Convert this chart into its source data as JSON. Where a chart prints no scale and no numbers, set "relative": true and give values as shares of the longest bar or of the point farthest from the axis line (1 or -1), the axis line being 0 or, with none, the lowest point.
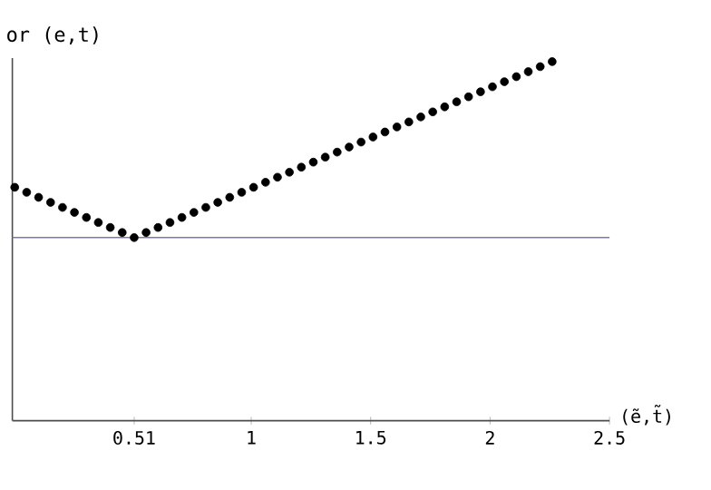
{
  "chart_data": {
    "type": "scatter",
    "relative": true,
    "xlabel": "(ẽ,t̃)",
    "ylabel": "or (e,t)",
    "x": [
      0.01,
      0.06,
      0.11,
      0.16,
      0.21,
      0.26,
      0.31,
      0.36,
      0.41,
      0.46,
      0.51,
      0.56,
      0.61,
      0.66,
      0.71,
      0.76,
      0.81,
      0.86,
      0.91,
      0.96,
      1.01,
      1.06,
      1.11,
      1.16,
      1.21,
      1.26,
      1.31,
      1.36,
      1.41,
      1.46,
      1.51,
      1.56,
      1.61,
      1.66,
      1.71,
      1.76,
      1.81,
      1.86,
      1.91,
      1.96,
      2.01,
      2.06,
      2.11,
      2.16,
      2.21,
      2.26
    ],
    "series": [
      {
        "color": "#000000",
        "values": [
          0.65,
          0.636,
          0.622,
          0.608,
          0.594,
          0.58,
          0.566,
          0.552,
          0.538,
          0.524,
          0.51,
          0.524,
          0.538,
          0.552,
          0.566,
          0.58,
          0.594,
          0.608,
          0.622,
          0.636,
          0.65,
          0.664,
          0.678,
          0.692,
          0.706,
          0.72,
          0.734,
          0.748,
          0.762,
          0.776,
          0.79,
          0.804,
          0.818,
          0.832,
          0.846,
          0.86,
          0.874,
          0.888,
          0.902,
          0.916,
          0.93,
          0.944,
          0.958,
          0.972,
          0.986,
          1.0
        ]
      }
    ],
    "marker": "circle",
    "xlim": [
      0,
      2.5
    ],
    "xticks": [
      0.51,
      1,
      1.5,
      2,
      2.5
    ],
    "ref_lines": [
      {
        "axis": "y",
        "value": 0.51,
        "color": "#7b76b8"
      }
    ],
    "grid": false
  }
}
